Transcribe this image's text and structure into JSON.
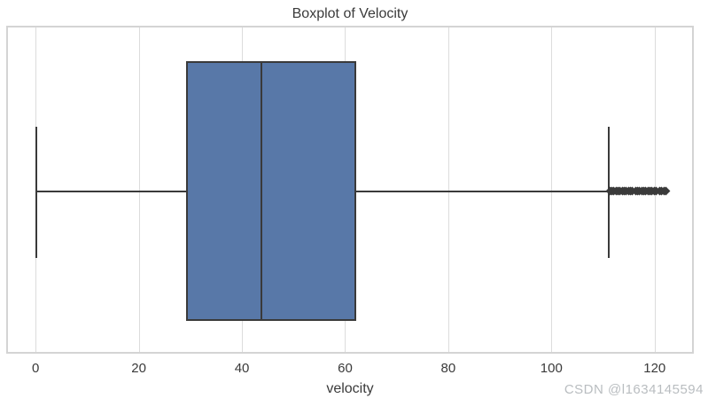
{
  "figure": {
    "title": "Boxplot of Velocity",
    "xlabel": "velocity",
    "watermark": "CSDN @l1634145594"
  },
  "chart_data": {
    "type": "box",
    "orientation": "horizontal",
    "title": "Boxplot of Velocity",
    "xlabel": "velocity",
    "ylabel": "",
    "series_name": "velocity",
    "xlim": [
      -5.7,
      127.6
    ],
    "xticks": [
      0,
      20,
      40,
      60,
      80,
      100,
      120
    ],
    "grid": "vertical",
    "legend": "none",
    "box": {
      "whisker_low": 0.2,
      "q1": 29.2,
      "median": 43.8,
      "q3": 62.1,
      "whisker_high": 111.1,
      "outliers": [
        111.3,
        111.7,
        112.1,
        112.5,
        112.9,
        113.3,
        113.7,
        114.1,
        114.5,
        114.9,
        115.3,
        115.6,
        116.3,
        116.7,
        117.1,
        117.5,
        117.9,
        118.3,
        118.7,
        119.1,
        119.5,
        119.9,
        120.3,
        121.0,
        121.4,
        121.8,
        122.2
      ]
    },
    "colors": {
      "box_fill": "#5878a8",
      "line": "#3a3a3a",
      "grid": "#dcdcdc",
      "border": "#d4d4d4",
      "text": "#3a3a3a",
      "watermark": "#b9bdc0"
    }
  }
}
